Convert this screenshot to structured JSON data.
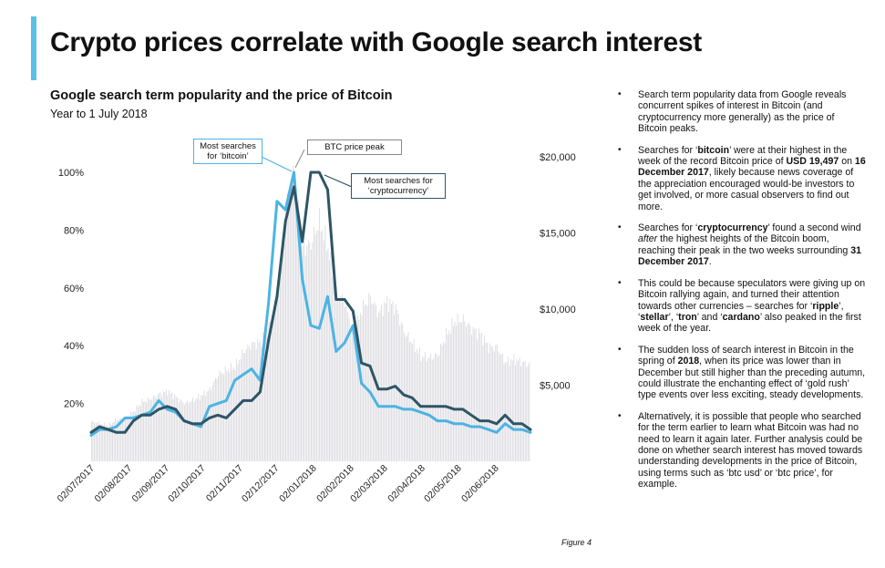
{
  "slide_title": "Crypto prices correlate with Google search interest",
  "colors": {
    "accent": "#5bc0e8",
    "bitcoin_line": "#4db3e3",
    "crypto_line": "#2e5566",
    "price_bars": "#d6d6dc"
  },
  "chart_data": {
    "type": "line",
    "title": "Google search term popularity and the price of Bitcoin",
    "subtitle": "Year to 1 July 2018",
    "x": [
      "02/07/2017",
      "09/07/2017",
      "16/07/2017",
      "23/07/2017",
      "30/07/2017",
      "06/08/2017",
      "13/08/2017",
      "20/08/2017",
      "27/08/2017",
      "03/09/2017",
      "10/09/2017",
      "17/09/2017",
      "24/09/2017",
      "01/10/2017",
      "08/10/2017",
      "15/10/2017",
      "22/10/2017",
      "29/10/2017",
      "05/11/2017",
      "12/11/2017",
      "19/11/2017",
      "26/11/2017",
      "03/12/2017",
      "10/12/2017",
      "17/12/2017",
      "24/12/2017",
      "31/12/2017",
      "07/01/2018",
      "14/01/2018",
      "21/01/2018",
      "28/01/2018",
      "04/02/2018",
      "11/02/2018",
      "18/02/2018",
      "25/02/2018",
      "04/03/2018",
      "11/03/2018",
      "18/03/2018",
      "25/03/2018",
      "01/04/2018",
      "08/04/2018",
      "15/04/2018",
      "22/04/2018",
      "29/04/2018",
      "06/05/2018",
      "13/05/2018",
      "20/05/2018",
      "27/05/2018",
      "03/06/2018",
      "10/06/2018",
      "17/06/2018",
      "24/06/2018",
      "01/07/2018"
    ],
    "x_tick_labels": [
      "02/07/2017",
      "02/08/2017",
      "02/09/2017",
      "02/10/2017",
      "02/11/2017",
      "02/12/2017",
      "02/01/2018",
      "02/02/2018",
      "02/03/2018",
      "02/04/2018",
      "02/05/2018",
      "02/06/2018"
    ],
    "y_left": {
      "ticks": [
        "20%",
        "40%",
        "60%",
        "80%",
        "100%"
      ],
      "range": [
        0,
        100
      ]
    },
    "y_right": {
      "ticks": [
        "$5,000",
        "$10,000",
        "$15,000",
        "$20,000"
      ],
      "range": [
        0,
        20000
      ]
    },
    "series": [
      {
        "values": [
          9,
          11,
          11,
          12,
          15,
          15,
          16,
          17,
          21,
          18,
          17,
          14,
          13,
          12,
          19,
          20,
          21,
          28,
          30,
          32,
          28,
          55,
          90,
          87,
          100,
          63,
          47,
          46,
          57,
          38,
          41,
          47,
          27,
          24,
          19,
          19,
          19,
          18,
          18,
          17,
          16,
          14,
          14,
          13,
          13,
          12,
          12,
          11,
          10,
          13,
          11,
          11,
          10
        ]
      },
      {
        "values": [
          10,
          12,
          11,
          10,
          10,
          14,
          16,
          16,
          18,
          19,
          18,
          14,
          13,
          13,
          15,
          16,
          15,
          18,
          21,
          21,
          24,
          42,
          57,
          83,
          95,
          76,
          100,
          100,
          94,
          56,
          56,
          52,
          34,
          33,
          25,
          25,
          26,
          23,
          22,
          19,
          19,
          19,
          19,
          18,
          18,
          16,
          14,
          14,
          13,
          16,
          13,
          13,
          11
        ]
      },
      {
        "values": [
          2600,
          2500,
          2350,
          2750,
          2800,
          3300,
          3900,
          4100,
          4400,
          4600,
          4200,
          3800,
          4000,
          4300,
          4700,
          5700,
          6000,
          6200,
          7200,
          7700,
          7800,
          8800,
          11000,
          16500,
          19000,
          14000,
          14300,
          15800,
          14000,
          11000,
          10500,
          8200,
          10000,
          10800,
          9700,
          10500,
          10100,
          8500,
          7800,
          6900,
          6800,
          7000,
          8300,
          9200,
          9300,
          8700,
          8400,
          7500,
          7500,
          6500,
          6700,
          6500,
          6300
        ]
      }
    ]
  },
  "callouts": {
    "bitcoin": "Most searches for ‘bitcoin’",
    "price": "BTC price peak",
    "crypto": "Most searches for ‘cryptocurrency’"
  },
  "figure_label": "Figure 4",
  "notes": [
    [
      {
        "t": "Search term popularity data from Google reveals concurrent spikes of interest in Bitcoin (and cryptocurrency more generally) as the price of Bitcoin peaks."
      }
    ],
    [
      {
        "t": "Searches for ‘"
      },
      {
        "t": "bitcoin",
        "b": true
      },
      {
        "t": "’ were at their highest in the week of the record Bitcoin price of "
      },
      {
        "t": "USD 19,497",
        "b": true
      },
      {
        "t": " on "
      },
      {
        "t": "16 December 2017",
        "b": true
      },
      {
        "t": ", likely because news coverage of the appreciation encouraged would-be investors to get involved, or more casual observers to find out more."
      }
    ],
    [
      {
        "t": "Searches for ‘"
      },
      {
        "t": "cryptocurrency",
        "b": true
      },
      {
        "t": "’ found a second wind "
      },
      {
        "t": "after",
        "i": true
      },
      {
        "t": " the highest heights of the Bitcoin boom, reaching their peak in the two weeks surrounding "
      },
      {
        "t": "31 December 2017",
        "b": true
      },
      {
        "t": "."
      }
    ],
    [
      {
        "t": "This could be because speculators were giving up on Bitcoin rallying again, and turned their attention towards other currencies – searches for ‘"
      },
      {
        "t": "ripple",
        "b": true
      },
      {
        "t": "’, ‘"
      },
      {
        "t": "stellar",
        "b": true
      },
      {
        "t": "’, ‘"
      },
      {
        "t": "tron",
        "b": true
      },
      {
        "t": "’ and ‘"
      },
      {
        "t": "cardano",
        "b": true
      },
      {
        "t": "’ also peaked in the first week of the year."
      }
    ],
    [
      {
        "t": "The sudden loss of search interest in Bitcoin in the spring of "
      },
      {
        "t": "2018",
        "b": true
      },
      {
        "t": ", when its price was lower than in December but still higher than the preceding autumn, could illustrate the enchanting effect of ‘gold rush’ type events over less exciting, steady developments."
      }
    ],
    [
      {
        "t": "Alternatively, it is possible that people who searched for the term earlier to learn what Bitcoin was had no need to learn it again later. Further analysis could be done on whether search interest has moved towards understanding developments in the price of Bitcoin, using terms such as ‘btc usd’ or ‘btc price’, for example."
      }
    ]
  ]
}
